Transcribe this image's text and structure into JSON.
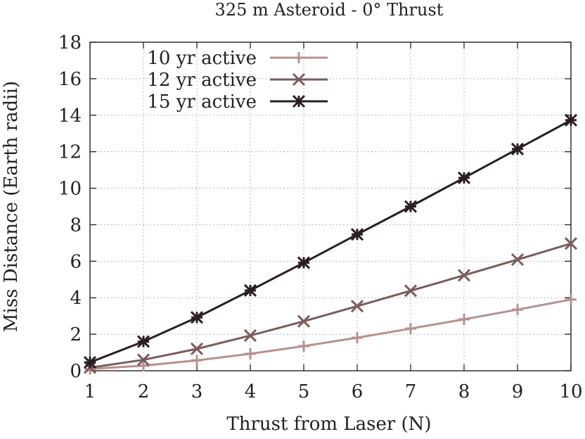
{
  "chart_data": {
    "type": "line",
    "title": "325 m Asteroid - 0° Thrust",
    "xlabel": "Thrust from Laser (N)",
    "ylabel": "Miss Distance (Earth radii)",
    "xlim": [
      1,
      10
    ],
    "ylim": [
      0,
      18
    ],
    "xticks": [
      1,
      2,
      3,
      4,
      5,
      6,
      7,
      8,
      9,
      10
    ],
    "yticks": [
      0,
      2,
      4,
      6,
      8,
      10,
      12,
      14,
      16,
      18
    ],
    "grid": true,
    "legend_position": "top-left",
    "x": [
      1,
      2,
      3,
      4,
      5,
      6,
      7,
      8,
      9,
      10
    ],
    "series": [
      {
        "name": "10 yr active",
        "marker": "plus",
        "color": "#b89090",
        "values": [
          0.1,
          0.28,
          0.57,
          0.93,
          1.35,
          1.81,
          2.31,
          2.82,
          3.35,
          3.9
        ]
      },
      {
        "name": "12 yr active",
        "marker": "cross",
        "color": "#7a5c5c",
        "values": [
          0.17,
          0.6,
          1.2,
          1.93,
          2.71,
          3.54,
          4.38,
          5.23,
          6.09,
          6.97
        ]
      },
      {
        "name": "15 yr active",
        "marker": "star",
        "color": "#2a1e22",
        "values": [
          0.46,
          1.6,
          2.92,
          4.4,
          5.92,
          7.47,
          9.0,
          10.57,
          12.15,
          13.73
        ]
      }
    ]
  }
}
